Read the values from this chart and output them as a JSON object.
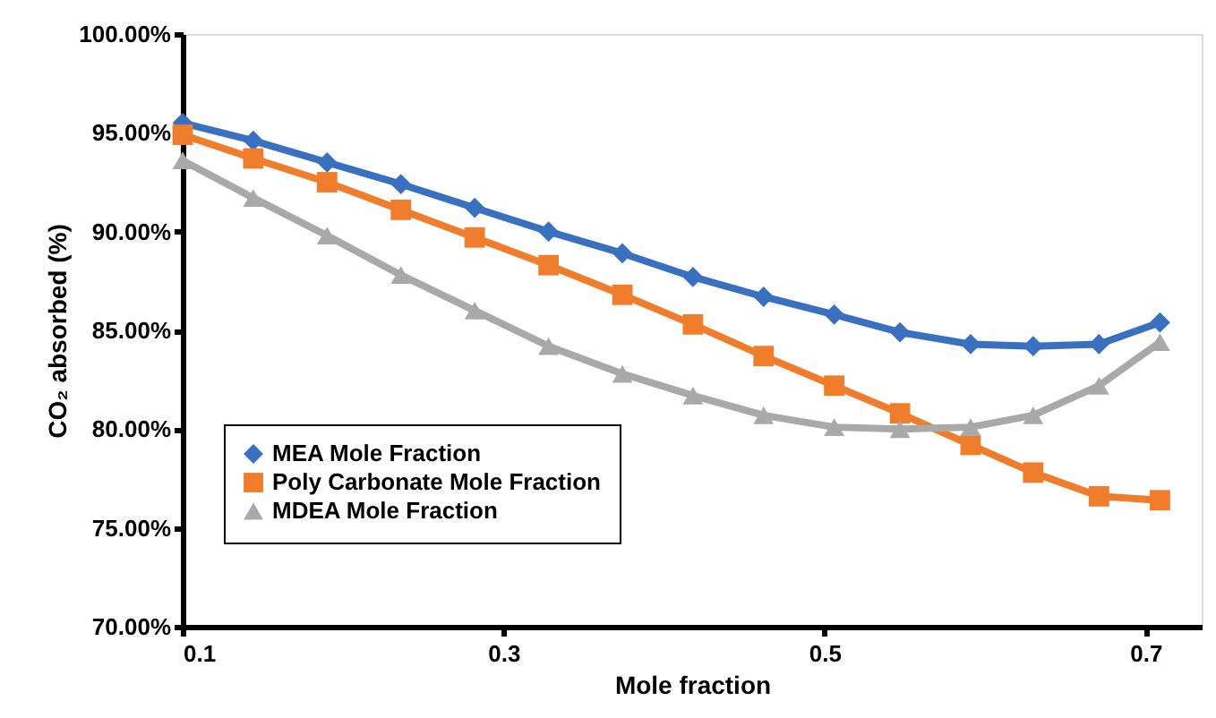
{
  "chart_data": {
    "type": "line",
    "xlabel": "Mole fraction",
    "ylabel": "CO₂ absorbed (%)",
    "x": [
      0.1,
      0.144,
      0.19,
      0.236,
      0.282,
      0.328,
      0.374,
      0.418,
      0.462,
      0.506,
      0.547,
      0.591,
      0.63,
      0.671,
      0.709
    ],
    "series": [
      {
        "name": "MEA Mole Fraction",
        "color": "#3a70c0",
        "marker": "diamond",
        "values": [
          95.5,
          94.6,
          93.5,
          92.4,
          91.2,
          90.0,
          88.9,
          87.7,
          86.7,
          85.8,
          84.9,
          84.3,
          84.2,
          84.3,
          85.4
        ]
      },
      {
        "name": "Poly Carbonate Mole Fraction",
        "color": "#f07d2c",
        "marker": "square",
        "values": [
          94.9,
          93.7,
          92.5,
          91.1,
          89.7,
          88.3,
          86.8,
          85.3,
          83.7,
          82.2,
          80.8,
          79.2,
          77.8,
          76.6,
          76.4
        ]
      },
      {
        "name": "MDEA Mole Fraction",
        "color": "#a9a9a9",
        "marker": "triangle",
        "values": [
          93.6,
          91.7,
          89.8,
          87.8,
          86.0,
          84.2,
          82.8,
          81.7,
          80.7,
          80.1,
          80.0,
          80.1,
          80.7,
          82.2,
          84.4
        ]
      }
    ],
    "xlim": [
      0.1,
      0.735
    ],
    "xticks": [
      0.1,
      0.3,
      0.5,
      0.7
    ],
    "ylim": [
      70,
      100
    ],
    "yticks": [
      {
        "value": 70,
        "label": "70.00%"
      },
      {
        "value": 75,
        "label": "75.00%"
      },
      {
        "value": 80,
        "label": "80.00%"
      },
      {
        "value": 85,
        "label": "85.00%"
      },
      {
        "value": 90,
        "label": "90.00%"
      },
      {
        "value": 95,
        "label": "95.00%"
      },
      {
        "value": 100,
        "label": "100.00%"
      }
    ],
    "grid": false,
    "legend": "bottom left",
    "line_style": "solid"
  }
}
